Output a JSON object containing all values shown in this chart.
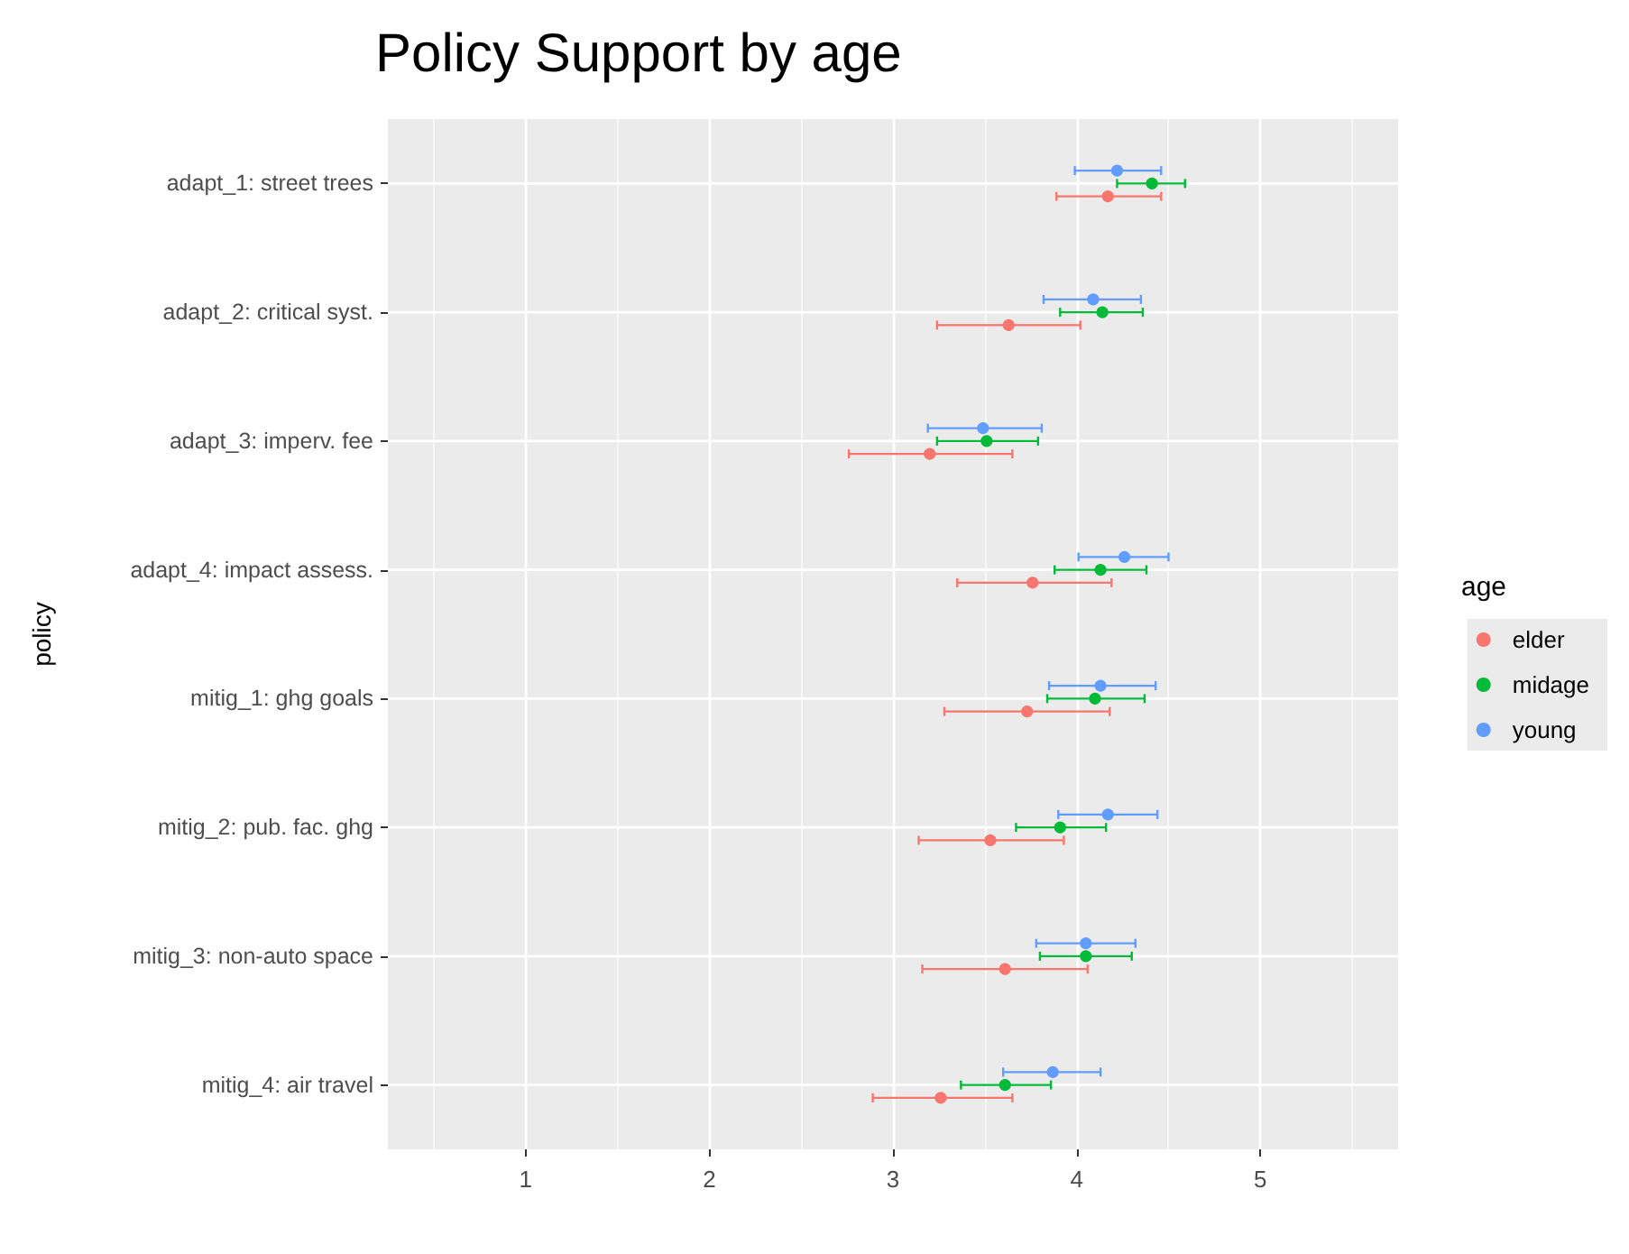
{
  "chart_data": {
    "type": "scatter",
    "orientation": "horizontal",
    "title": "Policy Support by age",
    "ylabel": "policy",
    "legend_title": "age",
    "legend": "right",
    "grid": true,
    "marker": "circle",
    "categories": [
      "adapt_1: street trees",
      "adapt_2: critical syst.",
      "adapt_3: imperv. fee",
      "adapt_4: impact assess.",
      "mitig_1: ghg goals",
      "mitig_2: pub. fac. ghg",
      "mitig_3: non-auto space",
      "mitig_4: air travel"
    ],
    "xlim": [
      0.25,
      5.75
    ],
    "xticks": [
      1,
      2,
      3,
      4,
      5
    ],
    "series": [
      {
        "name": "elder",
        "color": "#f8766d",
        "values": [
          4.17,
          3.63,
          3.2,
          3.76,
          3.73,
          3.53,
          3.61,
          3.26
        ],
        "errors": [
          [
            3.89,
            4.46
          ],
          [
            3.24,
            4.02
          ],
          [
            2.76,
            3.65
          ],
          [
            3.35,
            4.19
          ],
          [
            3.28,
            4.18
          ],
          [
            3.14,
            3.93
          ],
          [
            3.16,
            4.06
          ],
          [
            2.89,
            3.65
          ]
        ]
      },
      {
        "name": "midage",
        "color": "#00ba38",
        "values": [
          4.41,
          4.14,
          3.51,
          4.13,
          4.1,
          3.91,
          4.05,
          3.61
        ],
        "errors": [
          [
            4.22,
            4.59
          ],
          [
            3.91,
            4.36
          ],
          [
            3.24,
            3.79
          ],
          [
            3.88,
            4.38
          ],
          [
            3.84,
            4.37
          ],
          [
            3.67,
            4.16
          ],
          [
            3.8,
            4.3
          ],
          [
            3.37,
            3.86
          ]
        ]
      },
      {
        "name": "young",
        "color": "#619cff",
        "values": [
          4.22,
          4.09,
          3.49,
          4.26,
          4.13,
          4.17,
          4.05,
          3.87
        ],
        "errors": [
          [
            3.99,
            4.46
          ],
          [
            3.82,
            4.35
          ],
          [
            3.19,
            3.81
          ],
          [
            4.01,
            4.5
          ],
          [
            3.85,
            4.43
          ],
          [
            3.9,
            4.44
          ],
          [
            3.78,
            4.32
          ],
          [
            3.6,
            4.13
          ]
        ]
      }
    ]
  }
}
